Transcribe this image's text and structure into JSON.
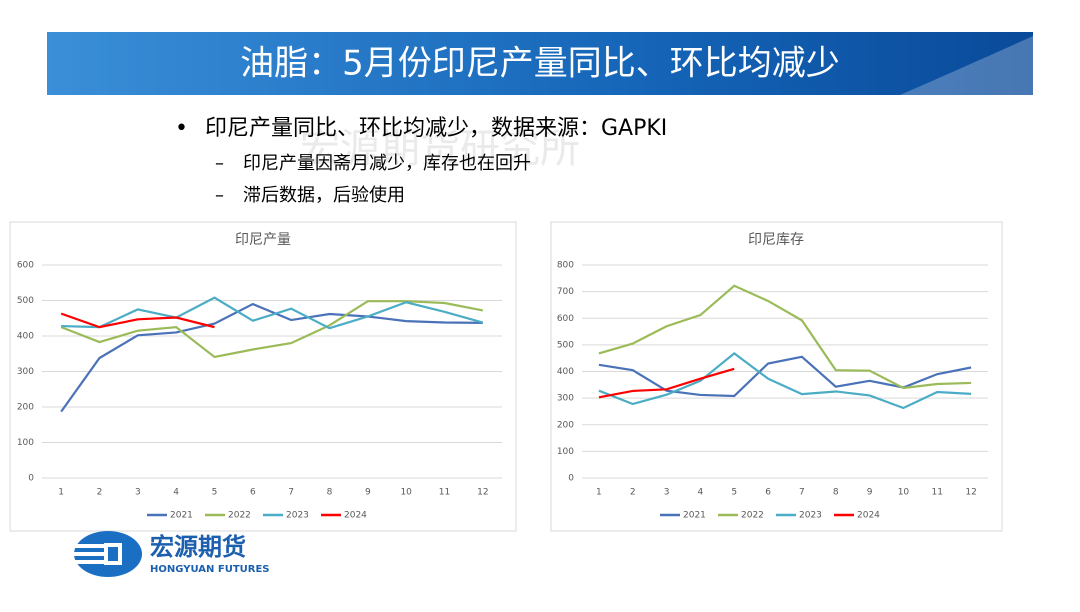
{
  "header": {
    "title": "油脂：5月份印尼产量同比、环比均减少"
  },
  "bullets": [
    {
      "text": "印尼产量同比、环比均减少，数据来源：GAPKI",
      "sub": [
        "印尼产量因斋月减少，库存也在回升",
        "滞后数据，后验使用"
      ]
    }
  ],
  "watermark": "宏源期货研究所",
  "logo": {
    "name": "宏源期货",
    "english": "HONGYUAN FUTURES"
  },
  "chart_data": [
    {
      "type": "line",
      "title": "印尼产量",
      "categories": [
        "1",
        "2",
        "3",
        "4",
        "5",
        "6",
        "7",
        "8",
        "9",
        "10",
        "11",
        "12"
      ],
      "ylim": [
        0,
        600
      ],
      "yticks": [
        0,
        100,
        200,
        300,
        400,
        500,
        600
      ],
      "grid": true,
      "legend": "bottom",
      "series": [
        {
          "name": "2021",
          "color": "#4a72b8",
          "values": [
            187,
            338,
            402,
            410,
            435,
            490,
            445,
            462,
            455,
            442,
            438,
            437
          ]
        },
        {
          "name": "2022",
          "color": "#9bbb59",
          "values": [
            425,
            383,
            415,
            425,
            341,
            362,
            380,
            430,
            498,
            498,
            493,
            472
          ]
        },
        {
          "name": "2023",
          "color": "#4bacc6",
          "values": [
            428,
            425,
            475,
            452,
            508,
            443,
            477,
            422,
            455,
            495,
            468,
            438
          ]
        },
        {
          "name": "2024",
          "color": "#ff0000",
          "values": [
            463,
            425,
            447,
            452,
            425,
            null,
            null,
            null,
            null,
            null,
            null,
            null
          ]
        }
      ]
    },
    {
      "type": "line",
      "title": "印尼库存",
      "categories": [
        "1",
        "2",
        "3",
        "4",
        "5",
        "6",
        "7",
        "8",
        "9",
        "10",
        "11",
        "12"
      ],
      "ylim": [
        0,
        800
      ],
      "yticks": [
        0,
        100,
        200,
        300,
        400,
        500,
        600,
        700,
        800
      ],
      "grid": true,
      "legend": "bottom",
      "series": [
        {
          "name": "2021",
          "color": "#4a72b8",
          "values": [
            425,
            405,
            328,
            312,
            308,
            430,
            455,
            343,
            365,
            340,
            390,
            415
          ]
        },
        {
          "name": "2022",
          "color": "#9bbb59",
          "values": [
            468,
            505,
            570,
            612,
            722,
            665,
            592,
            405,
            403,
            338,
            353,
            357
          ]
        },
        {
          "name": "2023",
          "color": "#4bacc6",
          "values": [
            328,
            278,
            313,
            365,
            468,
            373,
            315,
            325,
            310,
            263,
            323,
            316
          ]
        },
        {
          "name": "2024",
          "color": "#ff0000",
          "values": [
            303,
            327,
            333,
            373,
            410,
            null,
            null,
            null,
            null,
            null,
            null,
            null
          ]
        }
      ]
    }
  ]
}
